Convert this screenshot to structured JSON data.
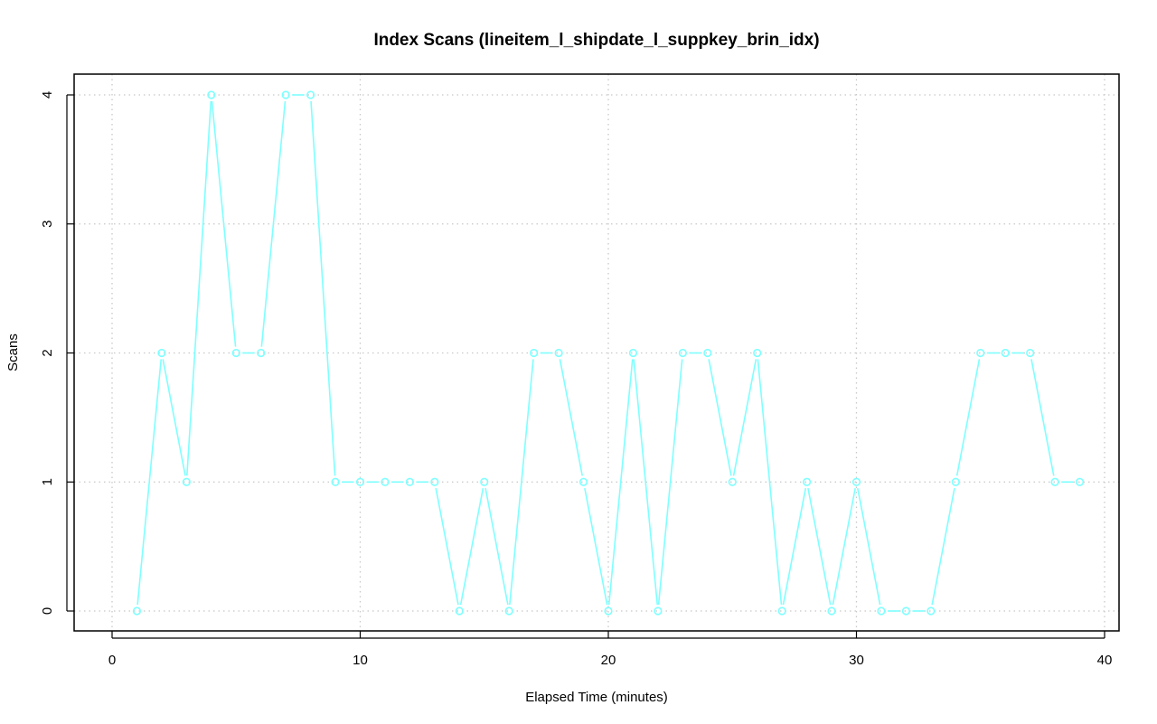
{
  "chart_data": {
    "type": "line",
    "title": "Index Scans (lineitem_l_shipdate_l_suppkey_brin_idx)",
    "xlabel": "Elapsed Time (minutes)",
    "ylabel": "Scans",
    "xlim": [
      0,
      40
    ],
    "ylim": [
      0,
      4
    ],
    "xticks": [
      "0",
      "10",
      "20",
      "30",
      "40"
    ],
    "yticks": [
      "0",
      "1",
      "2",
      "3",
      "4"
    ],
    "grid": true,
    "series": [
      {
        "color": "#7fffff",
        "marker": "circle",
        "x": [
          1,
          2,
          3,
          4,
          5,
          6,
          7,
          8,
          9,
          10,
          11,
          12,
          13,
          14,
          15,
          16,
          17,
          18,
          19,
          20,
          21,
          22,
          23,
          24,
          25,
          26,
          27,
          28,
          29,
          30,
          31,
          32,
          33,
          34,
          35,
          36,
          37,
          38,
          39
        ],
        "values": [
          0,
          2,
          1,
          4,
          2,
          2,
          4,
          4,
          1,
          1,
          1,
          1,
          1,
          0,
          1,
          0,
          2,
          2,
          1,
          0,
          2,
          0,
          2,
          2,
          1,
          2,
          0,
          1,
          0,
          1,
          0,
          0,
          0,
          1,
          2,
          2,
          2,
          1,
          1
        ]
      }
    ]
  }
}
